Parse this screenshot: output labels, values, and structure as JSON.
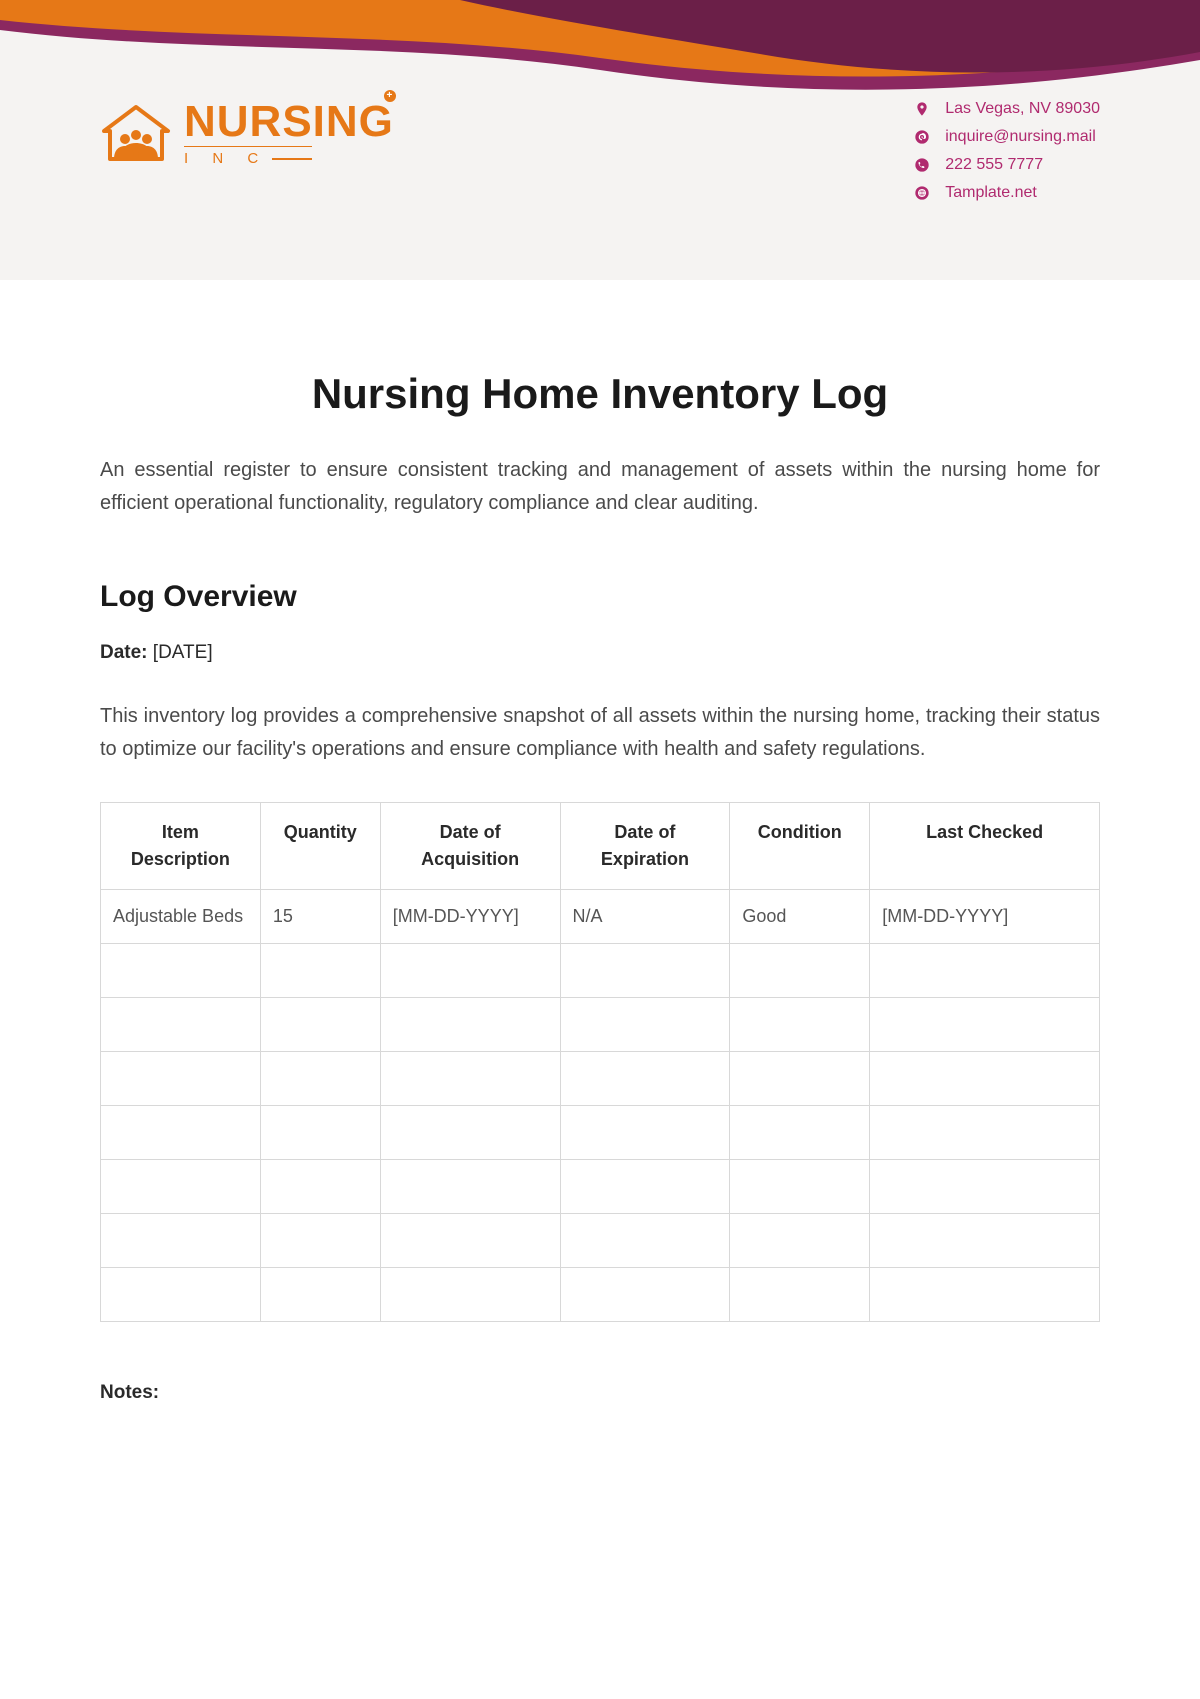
{
  "header": {
    "logo": {
      "main_text": "NURSING",
      "sub_text": "I N C",
      "color": "#e67817"
    },
    "wave_colors": {
      "orange": "#e67817",
      "magenta": "#8b2860",
      "dark_magenta": "#6b1f48"
    },
    "contacts": [
      {
        "icon": "location",
        "text": "Las Vegas, NV 89030"
      },
      {
        "icon": "email",
        "text": "inquire@nursing.mail"
      },
      {
        "icon": "phone",
        "text": "222 555 7777"
      },
      {
        "icon": "web",
        "text": "Tamplate.net"
      }
    ],
    "contact_color": "#b02a6f"
  },
  "document": {
    "title": "Nursing Home Inventory Log",
    "intro": "An essential register to ensure consistent tracking and management of assets within the nursing home for efficient operational functionality, regulatory compliance and clear auditing.",
    "section_title": "Log Overview",
    "date_label": "Date:",
    "date_value": "[DATE]",
    "overview": "This inventory log provides a comprehensive snapshot of all assets within the nursing home, tracking their status to optimize our facility's operations and ensure compliance with health and safety regulations.",
    "notes_label": "Notes:"
  },
  "table": {
    "columns": [
      "Item Description",
      "Quantity",
      "Date of Acquisition",
      "Date of Expiration",
      "Condition",
      "Last Checked"
    ],
    "column_widths": [
      "16%",
      "12%",
      "18%",
      "17%",
      "14%",
      "23%"
    ],
    "rows": [
      [
        "Adjustable Beds",
        "15",
        "[MM-DD-YYYY]",
        "N/A",
        "Good",
        "[MM-DD-YYYY]"
      ],
      [
        "",
        "",
        "",
        "",
        "",
        ""
      ],
      [
        "",
        "",
        "",
        "",
        "",
        ""
      ],
      [
        "",
        "",
        "",
        "",
        "",
        ""
      ],
      [
        "",
        "",
        "",
        "",
        "",
        ""
      ],
      [
        "",
        "",
        "",
        "",
        "",
        ""
      ],
      [
        "",
        "",
        "",
        "",
        "",
        ""
      ],
      [
        "",
        "",
        "",
        "",
        "",
        ""
      ]
    ],
    "border_color": "#d8d8d8",
    "header_text_color": "#2a2a2a",
    "cell_text_color": "#555555"
  },
  "colors": {
    "title_color": "#1a1a1a",
    "body_text": "#4a4a4a",
    "background": "#ffffff",
    "header_bg": "#f5f3f2"
  }
}
